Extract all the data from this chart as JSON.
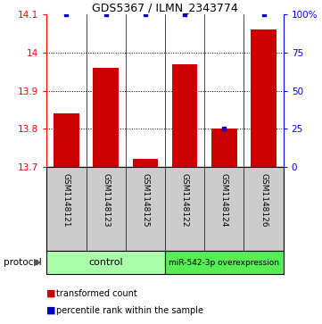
{
  "title": "GDS5367 / ILMN_2343774",
  "samples": [
    "GSM1148121",
    "GSM1148123",
    "GSM1148125",
    "GSM1148122",
    "GSM1148124",
    "GSM1148126"
  ],
  "red_values": [
    13.84,
    13.96,
    13.72,
    13.97,
    13.8,
    14.06
  ],
  "blue_values": [
    100,
    100,
    100,
    100,
    25,
    100
  ],
  "ylim_left": [
    13.7,
    14.1
  ],
  "ylim_right": [
    0,
    100
  ],
  "yticks_left": [
    13.7,
    13.8,
    13.9,
    14.0,
    14.1
  ],
  "ytick_labels_left": [
    "13.7",
    "13.8",
    "13.9",
    "14",
    "14.1"
  ],
  "yticks_right": [
    0,
    25,
    50,
    75,
    100
  ],
  "ytick_labels_right": [
    "0",
    "25",
    "50",
    "75",
    "100%"
  ],
  "bar_color": "#cc0000",
  "dot_color": "#0000cc",
  "bg_color": "#ffffff",
  "label_bg_color": "#cccccc",
  "group1_color": "#aaffaa",
  "group2_color": "#55ee55",
  "group1_label": "control",
  "group2_label": "miR-542-3p overexpression",
  "legend_red_label": "transformed count",
  "legend_blue_label": "percentile rank within the sample",
  "protocol_label": "protocol"
}
